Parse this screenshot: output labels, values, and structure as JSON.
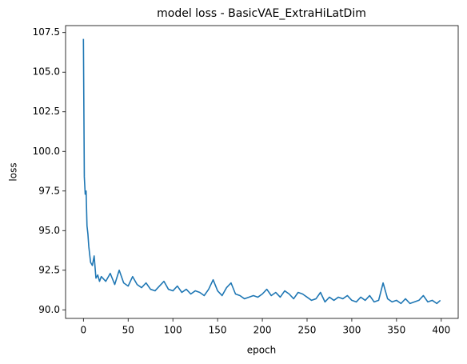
{
  "chart_data": {
    "type": "line",
    "title": "model loss - BasicVAE_ExtraHiLatDim",
    "xlabel": "epoch",
    "ylabel": "loss",
    "x": [
      0,
      1,
      2,
      3,
      4,
      5,
      6,
      7,
      8,
      10,
      12,
      14,
      16,
      18,
      20,
      25,
      30,
      35,
      40,
      45,
      50,
      55,
      60,
      65,
      70,
      75,
      80,
      85,
      90,
      95,
      100,
      105,
      110,
      115,
      120,
      125,
      130,
      135,
      140,
      145,
      150,
      155,
      160,
      165,
      170,
      175,
      180,
      185,
      190,
      195,
      200,
      205,
      210,
      215,
      220,
      225,
      230,
      235,
      240,
      245,
      250,
      255,
      260,
      265,
      270,
      275,
      280,
      285,
      290,
      295,
      300,
      305,
      310,
      315,
      320,
      325,
      330,
      335,
      340,
      345,
      350,
      355,
      360,
      365,
      370,
      375,
      380,
      385,
      390,
      395,
      399
    ],
    "series": [
      {
        "name": "loss",
        "color": "#1f77b4",
        "values": [
          107.1,
          98.4,
          97.3,
          97.5,
          95.3,
          94.8,
          94.0,
          93.5,
          93.0,
          92.8,
          93.4,
          92.0,
          92.2,
          91.8,
          92.1,
          91.8,
          92.3,
          91.6,
          92.5,
          91.7,
          91.5,
          92.1,
          91.6,
          91.4,
          91.7,
          91.3,
          91.2,
          91.5,
          91.8,
          91.3,
          91.2,
          91.5,
          91.1,
          91.3,
          91.0,
          91.2,
          91.1,
          90.9,
          91.3,
          91.9,
          91.2,
          90.9,
          91.4,
          91.7,
          91.0,
          90.9,
          90.7,
          90.8,
          90.9,
          90.8,
          91.0,
          91.3,
          90.9,
          91.1,
          90.8,
          91.2,
          91.0,
          90.7,
          91.1,
          91.0,
          90.8,
          90.6,
          90.7,
          91.1,
          90.5,
          90.8,
          90.6,
          90.8,
          90.7,
          90.9,
          90.6,
          90.5,
          90.8,
          90.6,
          90.9,
          90.5,
          90.6,
          91.7,
          90.7,
          90.5,
          90.6,
          90.4,
          90.7,
          90.4,
          90.5,
          90.6,
          90.9,
          90.5,
          90.6,
          90.4,
          90.6
        ]
      }
    ],
    "xlim": [
      -19.95,
      418.95
    ],
    "xticks": [
      0,
      50,
      100,
      150,
      200,
      250,
      300,
      350,
      400
    ],
    "ylim": [
      89.46,
      107.94
    ],
    "yticks": [
      {
        "value": 90,
        "label": "90.0"
      },
      92.5,
      {
        "value": 95,
        "label": "95.0"
      },
      97.5,
      {
        "value": 100,
        "label": "100.0"
      },
      102.5,
      {
        "value": 105,
        "label": "105.0"
      },
      107.5
    ]
  }
}
